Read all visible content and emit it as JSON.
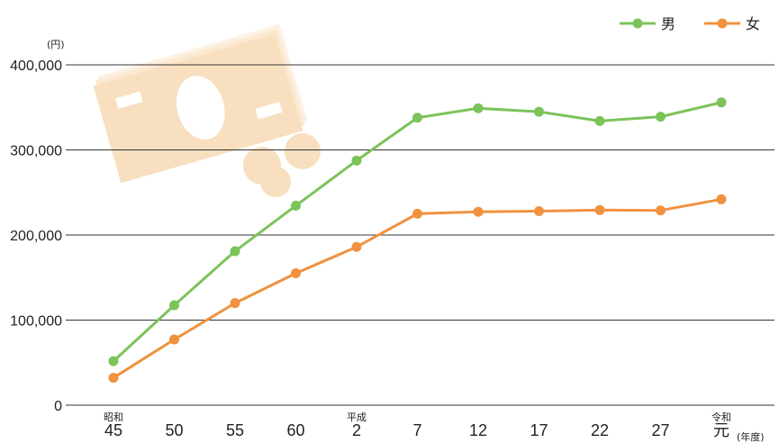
{
  "chart_data": {
    "type": "line",
    "y_unit": "(円)",
    "x_unit": "(年度)",
    "ylim": [
      0,
      400000
    ],
    "y_ticks": [
      "0",
      "100,000",
      "200,000",
      "300,000",
      "400,000"
    ],
    "y_tick_values": [
      0,
      100000,
      200000,
      300000,
      400000
    ],
    "grid": true,
    "legend_position": "top-right",
    "categories": [
      "45",
      "50",
      "55",
      "60",
      "2",
      "7",
      "12",
      "17",
      "22",
      "27",
      "元"
    ],
    "era_labels": [
      {
        "index": 0,
        "label": "昭和"
      },
      {
        "index": 4,
        "label": "平成"
      },
      {
        "index": 10,
        "label": "令和"
      }
    ],
    "series": [
      {
        "name": "男",
        "color": "#7cc35a",
        "values": [
          51700,
          117500,
          181000,
          234500,
          287500,
          337800,
          349000,
          344900,
          334000,
          339000,
          355800
        ]
      },
      {
        "name": "女",
        "color": "#f0923f",
        "values": [
          32200,
          77200,
          120000,
          155000,
          186000,
          225000,
          227300,
          228000,
          229300,
          228900,
          242000
        ]
      }
    ]
  },
  "decoration": {
    "icon": "money-illustration-icon",
    "color": "#fbeedd"
  }
}
